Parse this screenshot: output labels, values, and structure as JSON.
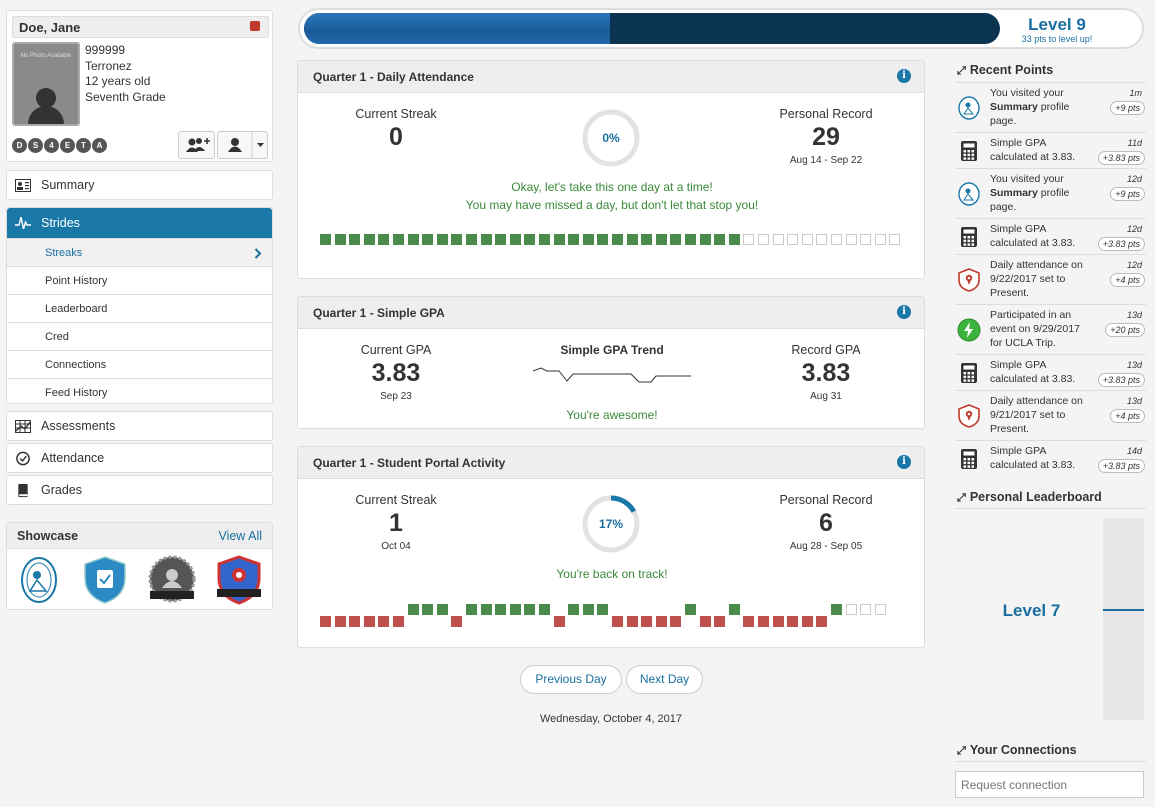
{
  "student": {
    "name": "Doe, Jane",
    "photo_text": "No Photo Available",
    "id": "999999",
    "school": "Terronez",
    "age": "12 years old",
    "grade": "Seventh Grade",
    "badges": [
      "D",
      "S",
      "4",
      "E",
      "T",
      "A"
    ]
  },
  "nav": {
    "summary": "Summary",
    "strides": "Strides",
    "sub_items": [
      "Streaks",
      "Point History",
      "Leaderboard",
      "Cred",
      "Connections",
      "Feed History"
    ],
    "assessments": "Assessments",
    "attendance": "Attendance",
    "grades": "Grades"
  },
  "showcase": {
    "title": "Showcase",
    "view_all": "View All"
  },
  "level": {
    "title": "Level 9",
    "sub": "33 pts to level up!",
    "progress_fraction": 0.44
  },
  "attendance_panel": {
    "title": "Quarter 1 - Daily Attendance",
    "current_label": "Current Streak",
    "current_value": "0",
    "percent": "0%",
    "percent_value": 0,
    "record_label": "Personal Record",
    "record_value": "29",
    "record_range": "Aug 14 - Sep 22",
    "msg1": "Okay, let's take this one day at a time!",
    "msg2": "You may have missed a day, but don't let that stop you!",
    "green_count": 29,
    "empty_count": 11
  },
  "gpa_panel": {
    "title": "Quarter 1 - Simple GPA",
    "current_label": "Current GPA",
    "current_value": "3.83",
    "current_date": "Sep 23",
    "trend_label": "Simple GPA Trend",
    "record_label": "Record GPA",
    "record_value": "3.83",
    "record_date": "Aug 31",
    "msg": "You're awesome!"
  },
  "portal_panel": {
    "title": "Quarter 1 - Student Portal Activity",
    "current_label": "Current Streak",
    "current_value": "1",
    "current_date": "Oct 04",
    "percent": "17%",
    "percent_value": 17,
    "record_label": "Personal Record",
    "record_value": "6",
    "record_range": "Aug 28 - Sep 05",
    "msg": "You're back on track!",
    "pattern": "RRRRRRGGGRGGGGGGRGGGRRRRRGRRGRRRRRRGEEE"
  },
  "day_nav": {
    "prev": "Previous Day",
    "next": "Next Day",
    "date": "Wednesday, October 4, 2017"
  },
  "recent_points": {
    "title": "Recent Points",
    "items": [
      {
        "icon": "profile-badge-icon",
        "pre": "You visited your ",
        "bold": "Summary",
        "post": " profile page.",
        "time": "1m",
        "pts": "+9 pts"
      },
      {
        "icon": "calculator-icon",
        "text": "Simple GPA calculated at 3.83.",
        "time": "11d",
        "pts": "+3.83 pts"
      },
      {
        "icon": "profile-badge-icon",
        "pre": "You visited your ",
        "bold": "Summary",
        "post": " profile page.",
        "time": "12d",
        "pts": "+9 pts"
      },
      {
        "icon": "calculator-icon",
        "text": "Simple GPA calculated at 3.83.",
        "time": "12d",
        "pts": "+3.83 pts"
      },
      {
        "icon": "attendance-shield-icon",
        "text": "Daily attendance on 9/22/2017 set to Present.",
        "time": "12d",
        "pts": "+4 pts"
      },
      {
        "icon": "lightning-icon",
        "text": "Participated in an event on 9/29/2017 for UCLA Trip.",
        "time": "13d",
        "pts": "+20 pts"
      },
      {
        "icon": "calculator-icon",
        "text": "Simple GPA calculated at 3.83.",
        "time": "13d",
        "pts": "+3.83 pts"
      },
      {
        "icon": "attendance-shield-icon",
        "text": "Daily attendance on 9/21/2017 set to Present.",
        "time": "13d",
        "pts": "+4 pts"
      },
      {
        "icon": "calculator-icon",
        "text": "Simple GPA calculated at 3.83.",
        "time": "14d",
        "pts": "+3.83 pts"
      }
    ]
  },
  "leaderboard": {
    "title": "Personal Leaderboard",
    "level": "Level 7"
  },
  "connections": {
    "title": "Your Connections",
    "placeholder": "Request connection"
  },
  "colors": {
    "accent": "#1a78a8",
    "green": "#4a8a4a",
    "red": "#c0504d"
  }
}
